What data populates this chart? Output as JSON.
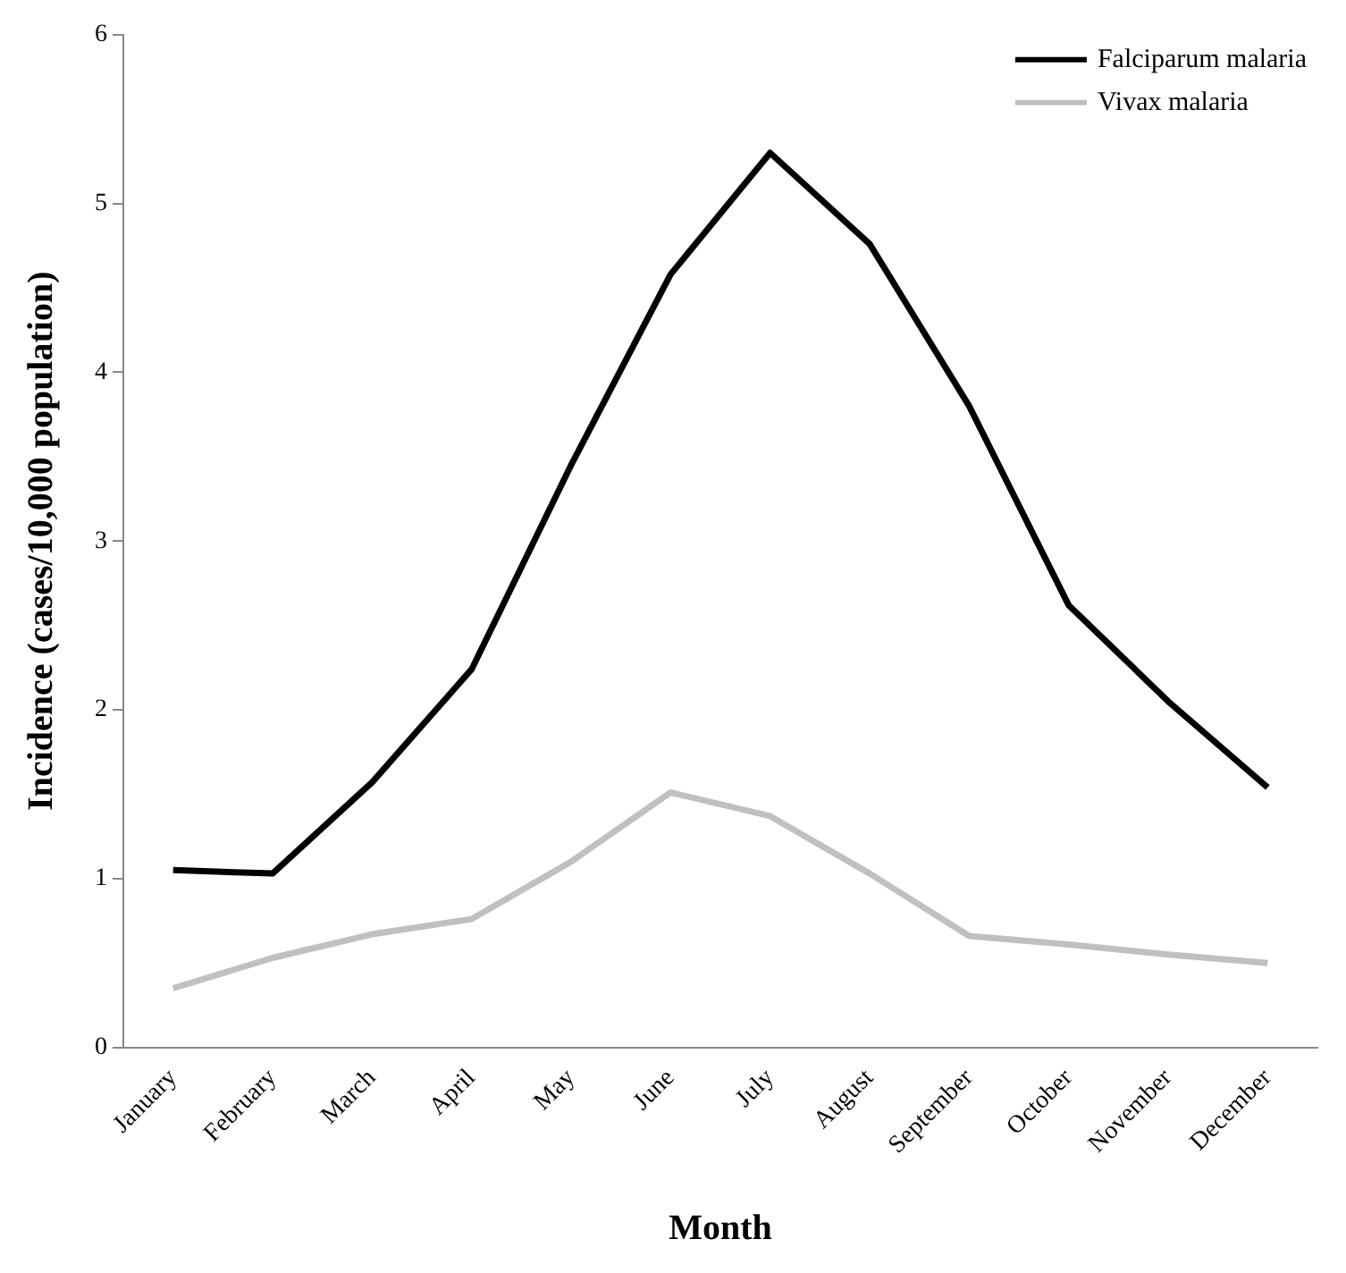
{
  "chart_data": {
    "type": "line",
    "xlabel": "Month",
    "ylabel": "Incidence (cases/10,000 population)",
    "categories": [
      "January",
      "February",
      "March",
      "April",
      "May",
      "June",
      "July",
      "August",
      "September",
      "October",
      "November",
      "December"
    ],
    "series": [
      {
        "name": "Falciparum malaria",
        "color": "#000000",
        "values": [
          1.05,
          1.03,
          1.57,
          2.24,
          3.45,
          4.58,
          5.3,
          4.76,
          3.8,
          2.62,
          2.05,
          1.54
        ]
      },
      {
        "name": "Vivax malaria",
        "color": "#c0c0c0",
        "values": [
          0.35,
          0.53,
          0.67,
          0.76,
          1.1,
          1.51,
          1.37,
          1.03,
          0.66,
          0.61,
          0.55,
          0.5
        ]
      }
    ],
    "ylim": [
      0,
      6
    ],
    "yticks": [
      0,
      1,
      2,
      3,
      4,
      5,
      6
    ],
    "grid": false,
    "legend": "top right",
    "marker": "none",
    "line_style": "solid"
  }
}
